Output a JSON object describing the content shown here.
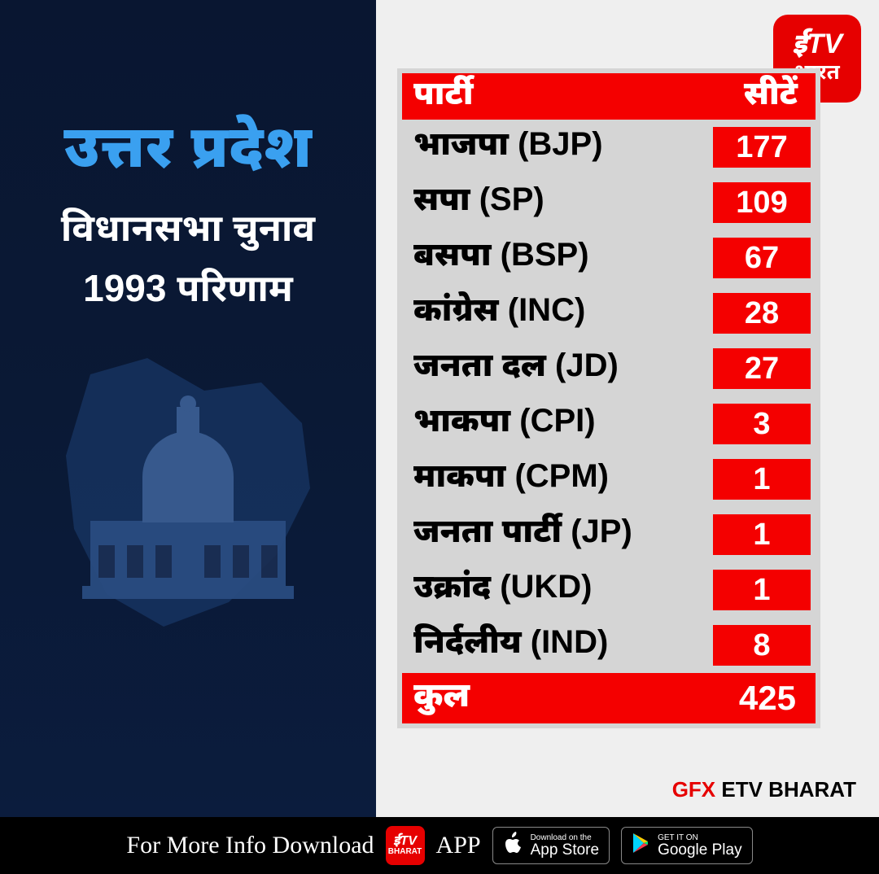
{
  "colors": {
    "red_primary": "#f40000",
    "red_logo": "#e60000",
    "blue_title": "#3aa0f0",
    "bg_left_top": "#091631",
    "bg_left_bot": "#0b1c3d",
    "bg_right": "#efefef",
    "table_bg": "#d5d5d5",
    "black": "#000000",
    "white": "#ffffff"
  },
  "typography": {
    "title_main_size": 72,
    "title_sub_size": 46,
    "header_size": 40,
    "party_size": 40,
    "seat_size": 38,
    "total_size": 42,
    "footer_size": 30
  },
  "left": {
    "title_main": "उत्तर प्रदेश",
    "title_sub1": "विधानसभा चुनाव",
    "title_sub2": "1993 परिणाम"
  },
  "logo": {
    "top": "ईTV",
    "bottom": "भारत"
  },
  "table": {
    "header_party": "पार्टी",
    "header_seats": "सीटें",
    "rows": [
      {
        "party": "भाजपा  (BJP)",
        "seats": "177"
      },
      {
        "party": "सपा (SP)",
        "seats": "109"
      },
      {
        "party": "बसपा (BSP)",
        "seats": "67"
      },
      {
        "party": "कांग्रेस (INC)",
        "seats": "28"
      },
      {
        "party": "जनता दल (JD)",
        "seats": "27"
      },
      {
        "party": "भाकपा (CPI)",
        "seats": "3"
      },
      {
        "party": "माकपा  (CPM)",
        "seats": "1"
      },
      {
        "party": "जनता पार्टी (JP)",
        "seats": "1"
      },
      {
        "party": "उक्रांद (UKD)",
        "seats": "1"
      },
      {
        "party": "निर्दलीय (IND)",
        "seats": "8"
      }
    ],
    "total_label": "कुल",
    "total_value": "425"
  },
  "credit": {
    "gfx": "GFX",
    "brand": "ETV BHARAT"
  },
  "footer": {
    "text": "For More Info Download",
    "app": "APP",
    "appstore_small": "Download on the",
    "appstore_big": "App Store",
    "play_small": "GET IT ON",
    "play_big": "Google Play"
  }
}
